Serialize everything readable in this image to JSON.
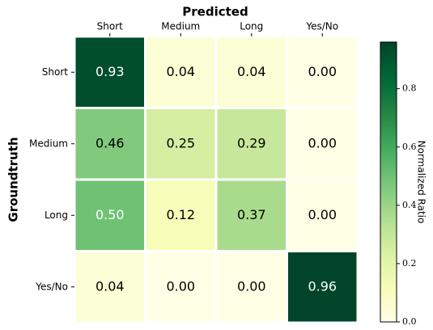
{
  "chart_data": {
    "type": "heatmap",
    "x_label": "Predicted",
    "y_label": "Groundtruth",
    "x_categories": [
      "Short",
      "Medium",
      "Long",
      "Yes/No"
    ],
    "y_categories": [
      "Short",
      "Medium",
      "Long",
      "Yes/No"
    ],
    "values": [
      [
        0.93,
        0.04,
        0.04,
        0
      ],
      [
        0.46,
        0.25,
        0.29,
        0
      ],
      [
        0.5,
        0.12,
        0.37,
        0
      ],
      [
        0.04,
        0,
        0,
        0.96
      ]
    ],
    "value_labels": [
      [
        "0.93",
        "0.04",
        "0.04",
        "0.00"
      ],
      [
        "0.46",
        "0.25",
        "0.29",
        "0.00"
      ],
      [
        "0.50",
        "0.12",
        "0.37",
        "0.00"
      ],
      [
        "0.04",
        "0.00",
        "0.00",
        "0.96"
      ]
    ],
    "colormap": "YlGn",
    "colorbar_label": "Normalized Ratio",
    "clim": [
      0,
      0.96
    ],
    "cticks": [
      {
        "value": 0,
        "label": "0.0"
      },
      0.2,
      0.4,
      0.6,
      0.8
    ]
  }
}
